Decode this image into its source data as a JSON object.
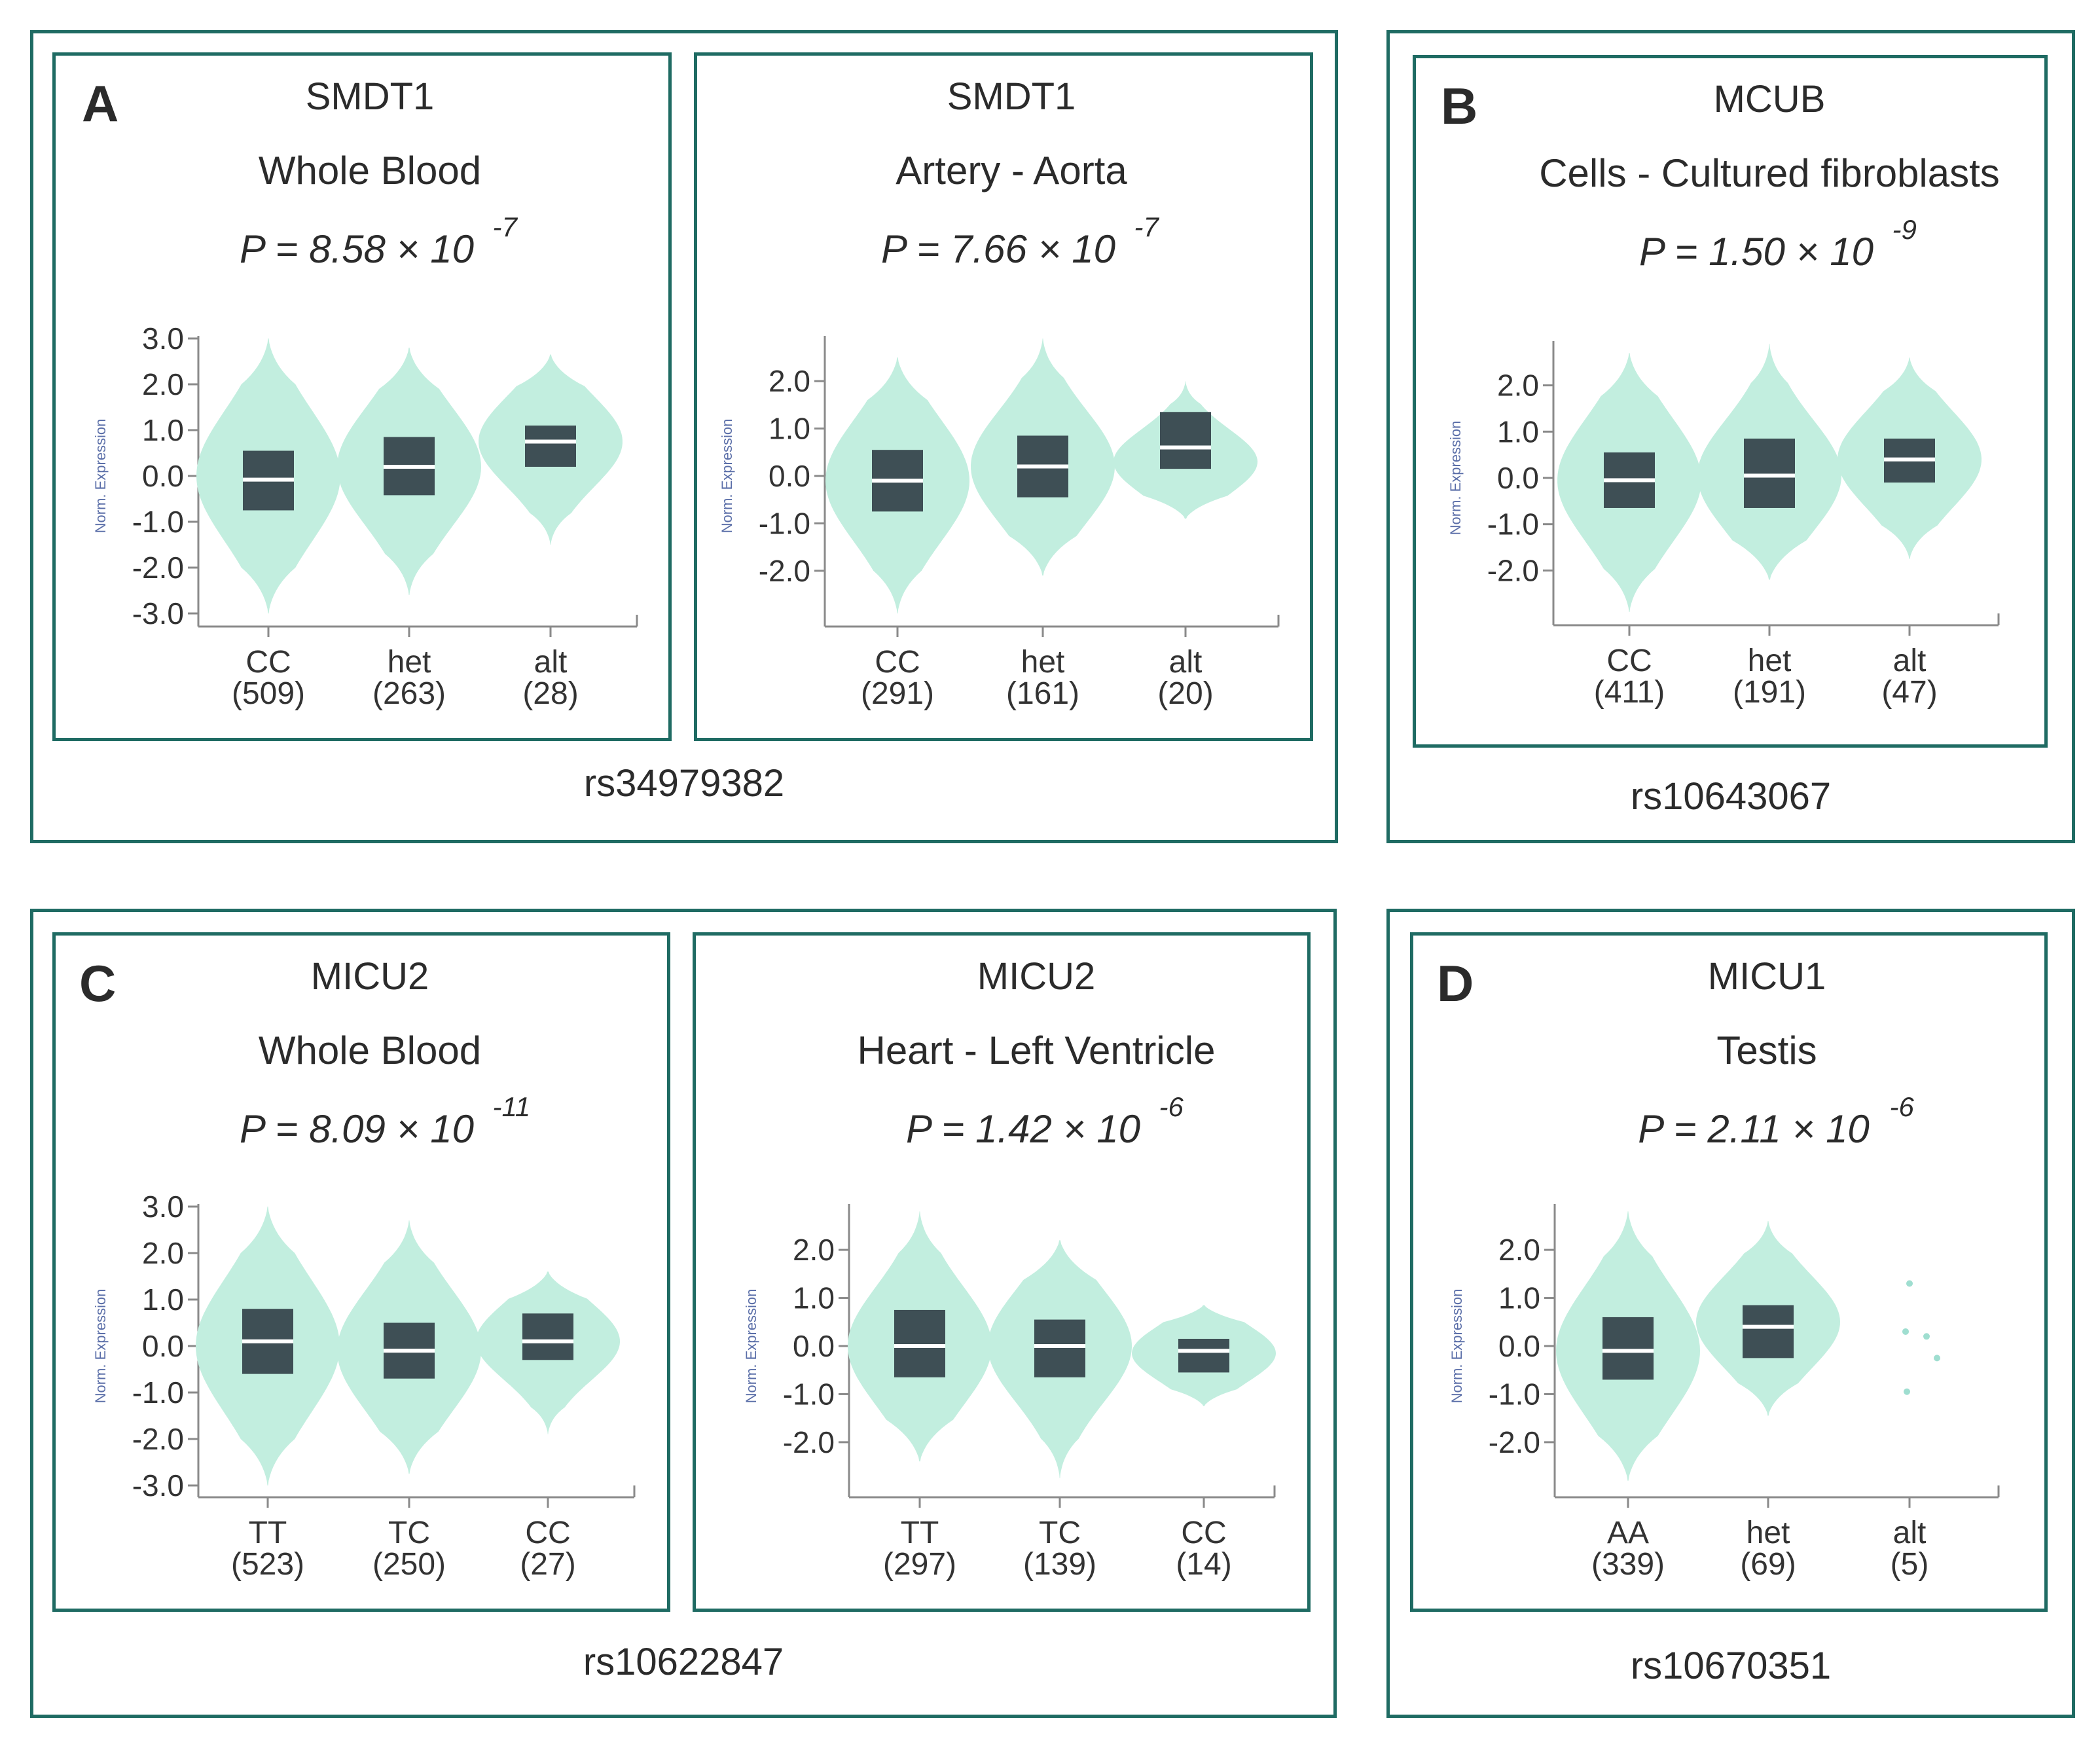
{
  "colors": {
    "border": "#1f6b63",
    "violin": "#c2eedf",
    "box": "#3e4f55",
    "median": "#ffffff",
    "axis": "#8a8a8a",
    "ylabel": "#5a6ea8"
  },
  "groups": [
    {
      "caption": "rs34979382"
    },
    {
      "caption": "rs10643067"
    },
    {
      "caption": "rs10622847"
    },
    {
      "caption": "rs10670351"
    }
  ],
  "chart_data": [
    {
      "type": "violin",
      "panel_letter": "A",
      "gene": "SMDT1",
      "tissue": "Whole Blood",
      "p_value": {
        "mantissa": "P = 8.58 × 10",
        "exponent": "-7"
      },
      "ylabel": "Norm. Expression",
      "ylim": [
        -3.0,
        3.0
      ],
      "yticks": [
        "3.0",
        "2.0",
        "1.0",
        "0.0",
        "-1.0",
        "-2.0",
        "-3.0"
      ],
      "categories": [
        {
          "label": "CC",
          "n": "(509)",
          "min": -3.0,
          "max": 3.0,
          "q1": -0.75,
          "median": -0.08,
          "q3": 0.55,
          "density_peak": 0.0
        },
        {
          "label": "het",
          "n": "(263)",
          "min": -2.6,
          "max": 2.8,
          "q1": -0.42,
          "median": 0.2,
          "q3": 0.85,
          "density_peak": 0.2
        },
        {
          "label": "alt",
          "n": "(28)",
          "min": -1.5,
          "max": 2.65,
          "q1": 0.2,
          "median": 0.75,
          "q3": 1.1,
          "density_peak": 0.75
        }
      ]
    },
    {
      "type": "violin",
      "panel_letter": "",
      "gene": "SMDT1",
      "tissue": "Artery - Aorta",
      "p_value": {
        "mantissa": "P = 7.66 × 10",
        "exponent": "-7"
      },
      "ylabel": "Norm. Expression",
      "ylim": [
        -2.9,
        2.9
      ],
      "yticks": [
        "2.0",
        "1.0",
        "0.0",
        "-1.0",
        "-2.0"
      ],
      "categories": [
        {
          "label": "CC",
          "n": "(291)",
          "min": -2.9,
          "max": 2.5,
          "q1": -0.75,
          "median": -0.1,
          "q3": 0.55,
          "density_peak": -0.1
        },
        {
          "label": "het",
          "n": "(161)",
          "min": -2.1,
          "max": 2.9,
          "q1": -0.45,
          "median": 0.2,
          "q3": 0.85,
          "density_peak": 0.2
        },
        {
          "label": "alt",
          "n": "(20)",
          "min": -0.9,
          "max": 2.0,
          "q1": 0.15,
          "median": 0.6,
          "q3": 1.35,
          "density_peak": 0.3
        }
      ]
    },
    {
      "type": "violin",
      "panel_letter": "B",
      "gene": "MCUB",
      "tissue": "Cells - Cultured fibroblasts",
      "p_value": {
        "mantissa": "P = 1.50 × 10",
        "exponent": "-9"
      },
      "ylabel": "Norm. Expression",
      "ylim": [
        -2.9,
        2.9
      ],
      "yticks": [
        "2.0",
        "1.0",
        "0.0",
        "-1.0",
        "-2.0"
      ],
      "categories": [
        {
          "label": "CC",
          "n": "(411)",
          "min": -2.9,
          "max": 2.7,
          "q1": -0.65,
          "median": -0.05,
          "q3": 0.55,
          "density_peak": -0.05
        },
        {
          "label": "het",
          "n": "(191)",
          "min": -2.2,
          "max": 2.9,
          "q1": -0.65,
          "median": 0.05,
          "q3": 0.85,
          "density_peak": 0.05
        },
        {
          "label": "alt",
          "n": "(47)",
          "min": -1.75,
          "max": 2.6,
          "q1": -0.1,
          "median": 0.4,
          "q3": 0.85,
          "density_peak": 0.4
        }
      ]
    },
    {
      "type": "violin",
      "panel_letter": "C",
      "gene": "MICU2",
      "tissue": "Whole Blood",
      "p_value": {
        "mantissa": "P = 8.09 × 10",
        "exponent": "-11"
      },
      "ylabel": "Norm. Expression",
      "ylim": [
        -3.0,
        3.0
      ],
      "yticks": [
        "3.0",
        "2.0",
        "1.0",
        "0.0",
        "-1.0",
        "-2.0",
        "-3.0"
      ],
      "categories": [
        {
          "label": "TT",
          "n": "(523)",
          "min": -3.0,
          "max": 3.0,
          "q1": -0.6,
          "median": 0.1,
          "q3": 0.8,
          "density_peak": 0.0
        },
        {
          "label": "TC",
          "n": "(250)",
          "min": -2.75,
          "max": 2.7,
          "q1": -0.7,
          "median": -0.1,
          "q3": 0.5,
          "density_peak": -0.1
        },
        {
          "label": "CC",
          "n": "(27)",
          "min": -1.9,
          "max": 1.6,
          "q1": -0.3,
          "median": 0.1,
          "q3": 0.7,
          "density_peak": 0.1
        }
      ]
    },
    {
      "type": "violin",
      "panel_letter": "",
      "gene": "MICU2",
      "tissue": "Heart - Left Ventricle",
      "p_value": {
        "mantissa": "P = 1.42 × 10",
        "exponent": "-6"
      },
      "ylabel": "Norm. Expression",
      "ylim": [
        -2.9,
        2.9
      ],
      "yticks": [
        "2.0",
        "1.0",
        "0.0",
        "-1.0",
        "-2.0"
      ],
      "categories": [
        {
          "label": "TT",
          "n": "(297)",
          "min": -2.4,
          "max": 2.8,
          "q1": -0.65,
          "median": 0.0,
          "q3": 0.75,
          "density_peak": 0.0
        },
        {
          "label": "TC",
          "n": "(139)",
          "min": -2.75,
          "max": 2.2,
          "q1": -0.65,
          "median": 0.0,
          "q3": 0.55,
          "density_peak": 0.0
        },
        {
          "label": "CC",
          "n": "(14)",
          "min": -1.25,
          "max": 0.85,
          "q1": -0.55,
          "median": -0.1,
          "q3": 0.15,
          "density_peak": -0.15
        }
      ]
    },
    {
      "type": "violin",
      "panel_letter": "D",
      "gene": "MICU1",
      "tissue": "Testis",
      "p_value": {
        "mantissa": "P = 2.11 × 10",
        "exponent": "-6"
      },
      "ylabel": "Norm. Expression",
      "ylim": [
        -2.9,
        2.9
      ],
      "yticks": [
        "2.0",
        "1.0",
        "0.0",
        "-1.0",
        "-2.0"
      ],
      "categories": [
        {
          "label": "AA",
          "n": "(339)",
          "min": -2.8,
          "max": 2.8,
          "q1": -0.7,
          "median": -0.1,
          "q3": 0.6,
          "density_peak": -0.1
        },
        {
          "label": "het",
          "n": "(69)",
          "min": -1.45,
          "max": 2.6,
          "q1": -0.25,
          "median": 0.4,
          "q3": 0.85,
          "density_peak": 0.5
        },
        {
          "label": "alt",
          "n": "(5)",
          "points": [
            1.3,
            0.3,
            0.2,
            -0.25,
            -0.95
          ]
        }
      ]
    }
  ]
}
